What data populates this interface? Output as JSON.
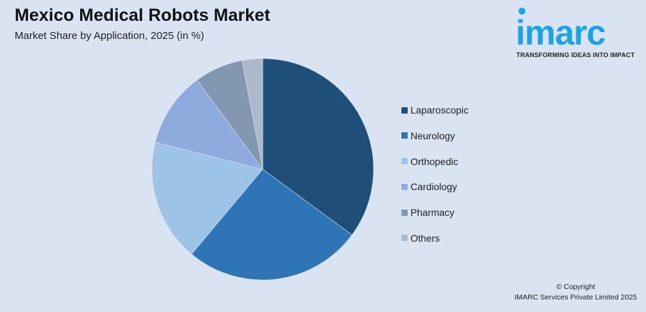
{
  "header": {
    "title": "Mexico Medical Robots Market",
    "subtitle": "Market Share by Application, 2025 (in %)"
  },
  "logo": {
    "word": "imarc",
    "tagline": "TRANSFORMING IDEAS INTO IMPACT",
    "color": "#1aa3e8"
  },
  "legend": {
    "items": [
      {
        "label": "Laparoscopic",
        "color": "#1f4e79"
      },
      {
        "label": "Neurology",
        "color": "#2e75b6"
      },
      {
        "label": "Orthopedic",
        "color": "#9dc3e6"
      },
      {
        "label": "Cardiology",
        "color": "#8faadc"
      },
      {
        "label": "Pharmacy",
        "color": "#8497b0"
      },
      {
        "label": "Others",
        "color": "#adb9ca"
      }
    ]
  },
  "footer": {
    "copyright": "© Copyright",
    "company": "IMARC Services Private Limited 2025"
  },
  "chart_data": {
    "type": "pie",
    "title": "Mexico Medical Robots Market",
    "subtitle": "Market Share by Application, 2025 (in %)",
    "categories": [
      "Laparoscopic",
      "Neurology",
      "Orthopedic",
      "Cardiology",
      "Pharmacy",
      "Others"
    ],
    "values": [
      35.1,
      26.0,
      17.8,
      11.0,
      7.1,
      3.0
    ],
    "colors": [
      "#1f4e79",
      "#2e75b6",
      "#9dc3e6",
      "#8faadc",
      "#8497b0",
      "#adb9ca"
    ],
    "start_angle": "12 o'clock, clockwise",
    "legend_position": "right",
    "data_labels": false
  }
}
